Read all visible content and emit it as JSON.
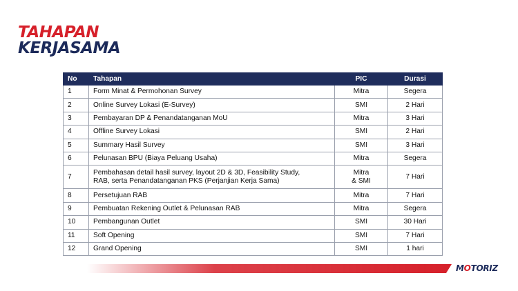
{
  "title": {
    "line1": "TAHAPAN",
    "line2": "KERJASAMA"
  },
  "table": {
    "headers": {
      "no": "No",
      "stage": "Tahapan",
      "pic": "PIC",
      "duration": "Durasi"
    },
    "rows": [
      {
        "no": "1",
        "stage": "Form Minat & Permohonan Survey",
        "pic": "Mitra",
        "duration": "Segera"
      },
      {
        "no": "2",
        "stage": "Online Survey Lokasi (E-Survey)",
        "pic": "SMI",
        "duration": "2 Hari"
      },
      {
        "no": "3",
        "stage": "Pembayaran DP & Penandatanganan MoU",
        "pic": "Mitra",
        "duration": "3 Hari"
      },
      {
        "no": "4",
        "stage": "Offline Survey Lokasi",
        "pic": "SMI",
        "duration": "2 Hari"
      },
      {
        "no": "5",
        "stage": "Summary Hasil Survey",
        "pic": "SMI",
        "duration": "3 Hari"
      },
      {
        "no": "6",
        "stage": "Pelunasan BPU (Biaya Peluang Usaha)",
        "pic": "Mitra",
        "duration": "Segera"
      },
      {
        "no": "7",
        "stage_line1": "Pembahasan detail hasil survey, layout 2D & 3D, Feasibility Study,",
        "stage_line2": "RAB, serta Penandatanganan PKS (Perjanjian Kerja Sama)",
        "pic_line1": "Mitra",
        "pic_line2": "& SMI",
        "duration": "7 Hari"
      },
      {
        "no": "8",
        "stage": "Persetujuan RAB",
        "pic": "Mitra",
        "duration": "7 Hari"
      },
      {
        "no": "9",
        "stage": "Pembuatan Rekening Outlet & Pelunasan RAB",
        "pic": "Mitra",
        "duration": "Segera"
      },
      {
        "no": "10",
        "stage": "Pembangunan Outlet",
        "pic": "SMI",
        "duration": "30 Hari"
      },
      {
        "no": "11",
        "stage": "Soft Opening",
        "pic": "SMI",
        "duration": "7 Hari"
      },
      {
        "no": "12",
        "stage": "Grand Opening",
        "pic": "SMI",
        "duration": "1 hari"
      }
    ]
  },
  "footer": {
    "logo_part1": "M",
    "logo_part2": "O",
    "logo_part3": "TORIZ"
  },
  "colors": {
    "red": "#d6202a",
    "navy": "#1f2d5c"
  }
}
